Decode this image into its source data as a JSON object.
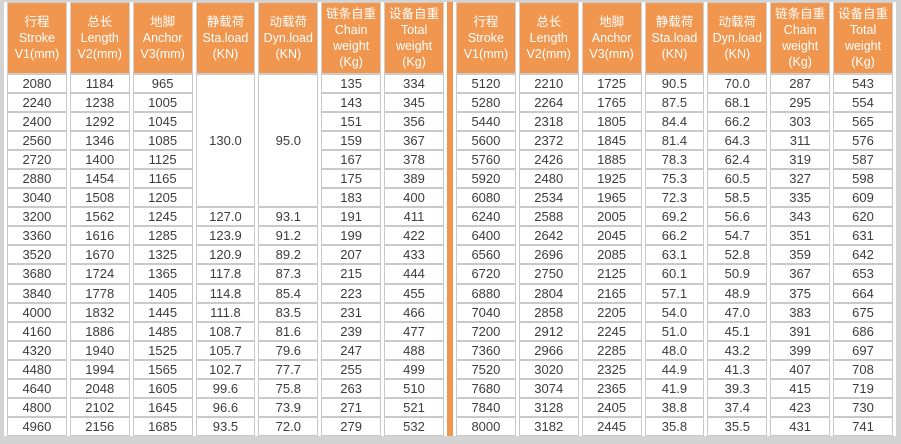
{
  "colors": {
    "header_bg": "#f0964e",
    "divider": "#f0964e",
    "cell_border": "#c9c9c9",
    "frame_border": "#d3d3d3",
    "header_text": "#ffffff",
    "cell_text": "#3c3c3c"
  },
  "table": {
    "columns": [
      {
        "zh": "行程",
        "en": "Stroke",
        "unit": "V1(mm)"
      },
      {
        "zh": "总长",
        "en": "Length",
        "unit": "V2(mm)"
      },
      {
        "zh": "地脚",
        "en": "Anchor",
        "unit": "V3(mm)"
      },
      {
        "zh": "静载荷",
        "en": "Sta.load",
        "unit": "(KN)"
      },
      {
        "zh": "动载荷",
        "en": "Dyn.load",
        "unit": "(KN)"
      },
      {
        "zh": "链条自重",
        "en": "Chain weight",
        "unit": "(Kg)"
      },
      {
        "zh": "设备自重",
        "en": "Total weight",
        "unit": "(Kg)"
      }
    ],
    "left": {
      "merged": {
        "span": 7,
        "cells": {
          "3": "130.0",
          "4": "95.0"
        }
      },
      "rows": [
        [
          "2080",
          "1184",
          "965",
          null,
          null,
          "135",
          "334"
        ],
        [
          "2240",
          "1238",
          "1005",
          null,
          null,
          "143",
          "345"
        ],
        [
          "2400",
          "1292",
          "1045",
          null,
          null,
          "151",
          "356"
        ],
        [
          "2560",
          "1346",
          "1085",
          null,
          null,
          "159",
          "367"
        ],
        [
          "2720",
          "1400",
          "1125",
          null,
          null,
          "167",
          "378"
        ],
        [
          "2880",
          "1454",
          "1165",
          null,
          null,
          "175",
          "389"
        ],
        [
          "3040",
          "1508",
          "1205",
          null,
          null,
          "183",
          "400"
        ],
        [
          "3200",
          "1562",
          "1245",
          "127.0",
          "93.1",
          "191",
          "411"
        ],
        [
          "3360",
          "1616",
          "1285",
          "123.9",
          "91.2",
          "199",
          "422"
        ],
        [
          "3520",
          "1670",
          "1325",
          "120.9",
          "89.2",
          "207",
          "433"
        ],
        [
          "3680",
          "1724",
          "1365",
          "117.8",
          "87.3",
          "215",
          "444"
        ],
        [
          "3840",
          "1778",
          "1405",
          "114.8",
          "85.4",
          "223",
          "455"
        ],
        [
          "4000",
          "1832",
          "1445",
          "111.8",
          "83.5",
          "231",
          "466"
        ],
        [
          "4160",
          "1886",
          "1485",
          "108.7",
          "81.6",
          "239",
          "477"
        ],
        [
          "4320",
          "1940",
          "1525",
          "105.7",
          "79.6",
          "247",
          "488"
        ],
        [
          "4480",
          "1994",
          "1565",
          "102.7",
          "77.7",
          "255",
          "499"
        ],
        [
          "4640",
          "2048",
          "1605",
          "99.6",
          "75.8",
          "263",
          "510"
        ],
        [
          "4800",
          "2102",
          "1645",
          "96.6",
          "73.9",
          "271",
          "521"
        ],
        [
          "4960",
          "2156",
          "1685",
          "93.5",
          "72.0",
          "279",
          "532"
        ]
      ]
    },
    "right": {
      "merged": null,
      "rows": [
        [
          "5120",
          "2210",
          "1725",
          "90.5",
          "70.0",
          "287",
          "543"
        ],
        [
          "5280",
          "2264",
          "1765",
          "87.5",
          "68.1",
          "295",
          "554"
        ],
        [
          "5440",
          "2318",
          "1805",
          "84.4",
          "66.2",
          "303",
          "565"
        ],
        [
          "5600",
          "2372",
          "1845",
          "81.4",
          "64.3",
          "311",
          "576"
        ],
        [
          "5760",
          "2426",
          "1885",
          "78.3",
          "62.4",
          "319",
          "587"
        ],
        [
          "5920",
          "2480",
          "1925",
          "75.3",
          "60.5",
          "327",
          "598"
        ],
        [
          "6080",
          "2534",
          "1965",
          "72.3",
          "58.5",
          "335",
          "609"
        ],
        [
          "6240",
          "2588",
          "2005",
          "69.2",
          "56.6",
          "343",
          "620"
        ],
        [
          "6400",
          "2642",
          "2045",
          "66.2",
          "54.7",
          "351",
          "631"
        ],
        [
          "6560",
          "2696",
          "2085",
          "63.1",
          "52.8",
          "359",
          "642"
        ],
        [
          "6720",
          "2750",
          "2125",
          "60.1",
          "50.9",
          "367",
          "653"
        ],
        [
          "6880",
          "2804",
          "2165",
          "57.1",
          "48.9",
          "375",
          "664"
        ],
        [
          "7040",
          "2858",
          "2205",
          "54.0",
          "47.0",
          "383",
          "675"
        ],
        [
          "7200",
          "2912",
          "2245",
          "51.0",
          "45.1",
          "391",
          "686"
        ],
        [
          "7360",
          "2966",
          "2285",
          "48.0",
          "43.2",
          "399",
          "697"
        ],
        [
          "7520",
          "3020",
          "2325",
          "44.9",
          "41.3",
          "407",
          "708"
        ],
        [
          "7680",
          "3074",
          "2365",
          "41.9",
          "39.3",
          "415",
          "719"
        ],
        [
          "7840",
          "3128",
          "2405",
          "38.8",
          "37.4",
          "423",
          "730"
        ],
        [
          "8000",
          "3182",
          "2445",
          "35.8",
          "35.5",
          "431",
          "741"
        ]
      ]
    }
  }
}
